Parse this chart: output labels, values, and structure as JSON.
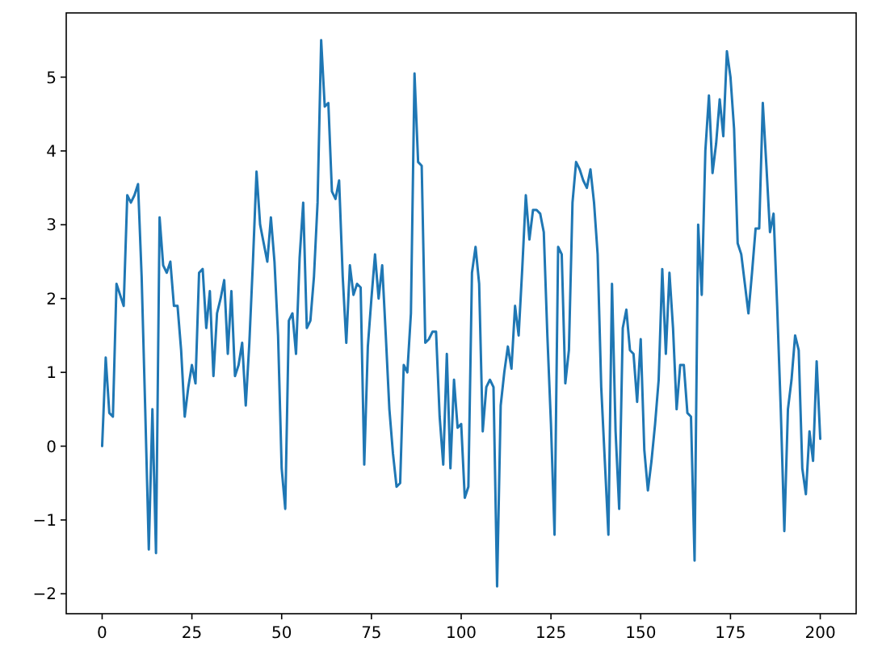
{
  "chart_data": {
    "type": "line",
    "color": "#1f77b4",
    "x": [
      0,
      1,
      2,
      3,
      4,
      5,
      6,
      7,
      8,
      9,
      10,
      11,
      12,
      13,
      14,
      15,
      16,
      17,
      18,
      19,
      20,
      21,
      22,
      23,
      24,
      25,
      26,
      27,
      28,
      29,
      30,
      31,
      32,
      33,
      34,
      35,
      36,
      37,
      38,
      39,
      40,
      41,
      42,
      43,
      44,
      45,
      46,
      47,
      48,
      49,
      50,
      51,
      52,
      53,
      54,
      55,
      56,
      57,
      58,
      59,
      60,
      61,
      62,
      63,
      64,
      65,
      66,
      67,
      68,
      69,
      70,
      71,
      72,
      73,
      74,
      75,
      76,
      77,
      78,
      79,
      80,
      81,
      82,
      83,
      84,
      85,
      86,
      87,
      88,
      89,
      90,
      91,
      92,
      93,
      94,
      95,
      96,
      97,
      98,
      99,
      100,
      101,
      102,
      103,
      104,
      105,
      106,
      107,
      108,
      109,
      110,
      111,
      112,
      113,
      114,
      115,
      116,
      117,
      118,
      119,
      120,
      121,
      122,
      123,
      124,
      125,
      126,
      127,
      128,
      129,
      130,
      131,
      132,
      133,
      134,
      135,
      136,
      137,
      138,
      139,
      140,
      141,
      142,
      143,
      144,
      145,
      146,
      147,
      148,
      149,
      150,
      151,
      152,
      153,
      154,
      155,
      156,
      157,
      158,
      159,
      160,
      161,
      162,
      163,
      164,
      165,
      166,
      167,
      168,
      169,
      170,
      171,
      172,
      173,
      174,
      175,
      176,
      177,
      178,
      179,
      180,
      181,
      182,
      183,
      184,
      185,
      186,
      187,
      188,
      189,
      190,
      191,
      192,
      193,
      194,
      195,
      196,
      197,
      198,
      199,
      200
    ],
    "values": [
      0,
      1.2,
      0.45,
      0.4,
      2.2,
      2.05,
      1.9,
      3.4,
      3.3,
      3.4,
      3.55,
      2.3,
      0.5,
      -1.4,
      0.5,
      -1.45,
      3.1,
      2.45,
      2.35,
      2.5,
      1.9,
      1.9,
      1.3,
      0.4,
      0.8,
      1.1,
      0.85,
      2.35,
      2.4,
      1.6,
      2.1,
      0.95,
      1.8,
      2.0,
      2.25,
      1.25,
      2.1,
      0.95,
      1.1,
      1.4,
      0.55,
      1.4,
      2.5,
      3.72,
      3.0,
      2.75,
      2.5,
      3.1,
      2.5,
      1.5,
      -0.3,
      -0.85,
      1.7,
      1.8,
      1.25,
      2.55,
      3.3,
      1.6,
      1.7,
      2.3,
      3.3,
      5.5,
      4.6,
      4.65,
      3.45,
      3.35,
      3.6,
      2.3,
      1.4,
      2.45,
      2.05,
      2.2,
      2.15,
      -0.25,
      1.35,
      2.0,
      2.6,
      2.0,
      2.45,
      1.5,
      0.5,
      -0.1,
      -0.55,
      -0.5,
      1.1,
      1.0,
      1.8,
      5.05,
      3.85,
      3.8,
      1.4,
      1.45,
      1.55,
      1.55,
      0.4,
      -0.25,
      1.25,
      -0.3,
      0.9,
      0.25,
      0.3,
      -0.7,
      -0.55,
      2.35,
      2.7,
      2.2,
      0.2,
      0.8,
      0.9,
      0.8,
      -1.9,
      0.55,
      1.0,
      1.35,
      1.05,
      1.9,
      1.5,
      2.4,
      3.4,
      2.8,
      3.2,
      3.2,
      3.15,
      2.9,
      1.5,
      0.3,
      -1.2,
      2.7,
      2.6,
      0.85,
      1.3,
      3.3,
      3.85,
      3.75,
      3.6,
      3.5,
      3.75,
      3.3,
      2.6,
      0.8,
      -0.2,
      -1.2,
      2.2,
      0.2,
      -0.85,
      1.6,
      1.85,
      1.3,
      1.25,
      0.6,
      1.45,
      -0.05,
      -0.6,
      -0.2,
      0.3,
      0.9,
      2.4,
      1.25,
      2.35,
      1.6,
      0.5,
      1.1,
      1.1,
      0.45,
      0.4,
      -1.55,
      3.0,
      2.05,
      4.0,
      4.75,
      3.7,
      4.1,
      4.7,
      4.2,
      5.35,
      5.0,
      4.3,
      2.75,
      2.6,
      2.2,
      1.8,
      2.35,
      2.95,
      2.95,
      4.65,
      3.8,
      2.9,
      3.15,
      1.9,
      0.5,
      -1.15,
      0.5,
      0.9,
      1.5,
      1.3,
      -0.3,
      -0.65,
      0.2,
      -0.2,
      1.15,
      0.1
    ],
    "xlim": [
      -10,
      210
    ],
    "xticks": [
      0,
      25,
      50,
      75,
      100,
      125,
      150,
      175,
      200
    ],
    "ylim": [
      -2.27,
      5.87
    ],
    "yticks": [
      -2,
      -1,
      0,
      1,
      2,
      3,
      4,
      5
    ]
  }
}
